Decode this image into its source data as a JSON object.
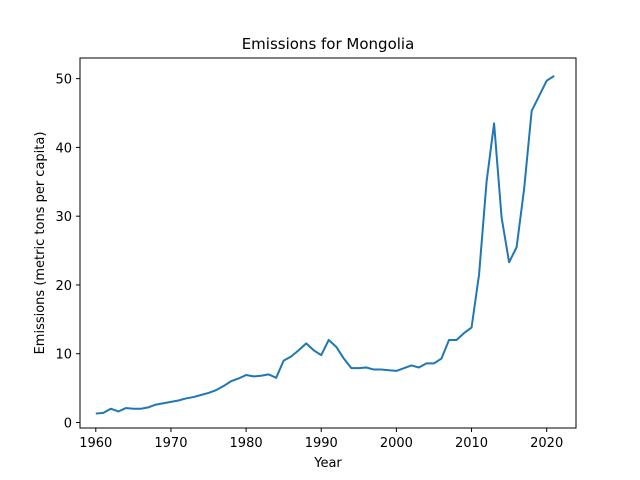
{
  "chart_data": {
    "type": "line",
    "title": "Emissions for Mongolia",
    "xlabel": "Year",
    "ylabel": "Emissions (metric tons per capita)",
    "xlim": [
      1957.9,
      2023.9
    ],
    "ylim": [
      -0.8,
      53.0
    ],
    "xticks": [
      1960,
      1970,
      1980,
      1990,
      2000,
      2010,
      2020
    ],
    "yticks": [
      0,
      10,
      20,
      30,
      40,
      50
    ],
    "grid": false,
    "legend": "none",
    "series": [
      {
        "color": "#1f77b4",
        "x": [
          1960,
          1961,
          1962,
          1963,
          1964,
          1965,
          1966,
          1967,
          1968,
          1969,
          1970,
          1971,
          1972,
          1973,
          1974,
          1975,
          1976,
          1977,
          1978,
          1979,
          1980,
          1981,
          1982,
          1983,
          1984,
          1985,
          1986,
          1987,
          1988,
          1989,
          1990,
          1991,
          1992,
          1993,
          1994,
          1995,
          1996,
          1997,
          1998,
          1999,
          2000,
          2001,
          2002,
          2003,
          2004,
          2005,
          2006,
          2007,
          2008,
          2009,
          2010,
          2011,
          2012,
          2013,
          2014,
          2015,
          2016,
          2017,
          2018,
          2019,
          2020,
          2021
        ],
        "values": [
          1.3,
          1.4,
          2.0,
          1.6,
          2.1,
          2.0,
          2.0,
          2.2,
          2.6,
          2.8,
          3.0,
          3.2,
          3.5,
          3.7,
          4.0,
          4.3,
          4.7,
          5.3,
          6.0,
          6.4,
          6.9,
          6.7,
          6.8,
          7.0,
          6.5,
          9.0,
          9.6,
          10.5,
          11.5,
          10.5,
          9.8,
          12.0,
          11.0,
          9.3,
          7.9,
          7.9,
          8.0,
          7.7,
          7.7,
          7.6,
          7.5,
          7.9,
          8.3,
          8.0,
          8.6,
          8.6,
          9.3,
          12.0,
          12.0,
          13.0,
          13.8,
          21.5,
          35.0,
          43.5,
          29.8,
          23.3,
          25.5,
          34.0,
          45.3,
          47.5,
          49.7,
          50.4
        ]
      }
    ]
  }
}
